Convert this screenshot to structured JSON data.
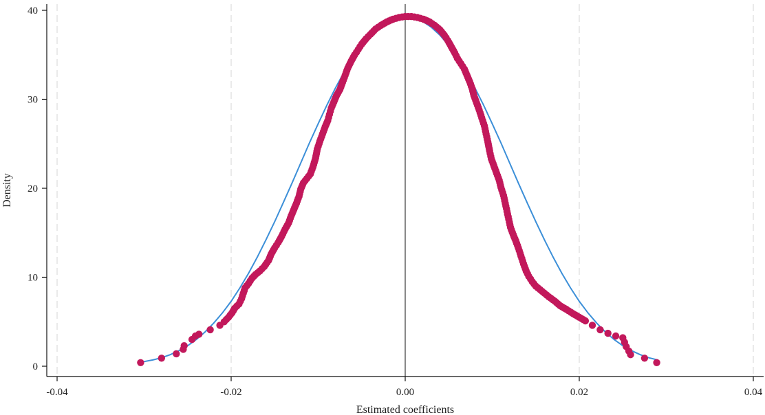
{
  "chart_data": {
    "type": "scatter",
    "title": "",
    "xlabel": "Estimated coefficients",
    "ylabel": "Density",
    "xlim": [
      -0.04,
      0.04
    ],
    "ylim": [
      0,
      40
    ],
    "x_ticks": [
      -0.04,
      -0.02,
      0.0,
      0.02,
      0.04
    ],
    "x_tick_labels": [
      "-0.04",
      "-0.02",
      "0.00",
      "0.02",
      "0.04"
    ],
    "y_ticks": [
      0,
      10,
      20,
      30,
      40
    ],
    "y_tick_labels": [
      "0",
      "10",
      "20",
      "30",
      "40"
    ],
    "vertical_gridlines": [
      -0.04,
      -0.02,
      0.02,
      0.04
    ],
    "reference_line_x": 0.0,
    "grid": true,
    "colors": {
      "points": "#c2185b",
      "normal_curve": "#3c8fd8",
      "reference_line": "#7a7a7a",
      "gridline": "#e3e3e3"
    },
    "series": [
      {
        "type": "scatter",
        "points": [
          [
            -0.0304,
            0.4
          ],
          [
            -0.028,
            0.9
          ],
          [
            -0.0263,
            1.4
          ],
          [
            -0.0255,
            1.9
          ],
          [
            -0.0254,
            2.3
          ],
          [
            -0.0245,
            3.0
          ],
          [
            -0.0241,
            3.4
          ],
          [
            -0.0237,
            3.6
          ],
          [
            -0.0224,
            4.1
          ],
          [
            -0.0213,
            4.6
          ],
          [
            -0.0208,
            5.0
          ],
          [
            -0.0203,
            5.5
          ],
          [
            -0.0199,
            6.0
          ],
          [
            -0.0196,
            6.5
          ],
          [
            -0.0191,
            7.0
          ],
          [
            -0.0188,
            7.6
          ],
          [
            -0.0186,
            8.2
          ],
          [
            -0.0184,
            8.8
          ],
          [
            -0.018,
            9.3
          ],
          [
            -0.0176,
            9.9
          ],
          [
            -0.0172,
            10.3
          ],
          [
            -0.0167,
            10.7
          ],
          [
            -0.0162,
            11.2
          ],
          [
            -0.0157,
            11.9
          ],
          [
            -0.0154,
            12.6
          ],
          [
            -0.015,
            13.3
          ],
          [
            -0.0146,
            13.9
          ],
          [
            -0.0142,
            14.6
          ],
          [
            -0.0138,
            15.4
          ],
          [
            -0.0134,
            16.1
          ],
          [
            -0.0131,
            16.9
          ],
          [
            -0.0128,
            17.6
          ],
          [
            -0.0125,
            18.3
          ],
          [
            -0.0122,
            19.1
          ],
          [
            -0.012,
            19.9
          ],
          [
            -0.0117,
            20.6
          ],
          [
            -0.0113,
            21.1
          ],
          [
            -0.0109,
            21.6
          ],
          [
            -0.0106,
            22.4
          ],
          [
            -0.0103,
            23.4
          ],
          [
            -0.0101,
            24.4
          ],
          [
            -0.0098,
            25.3
          ],
          [
            -0.0095,
            26.1
          ],
          [
            -0.0092,
            26.9
          ],
          [
            -0.0089,
            27.6
          ],
          [
            -0.0087,
            28.3
          ],
          [
            -0.0085,
            29.0
          ],
          [
            -0.0082,
            29.7
          ],
          [
            -0.0079,
            30.4
          ],
          [
            -0.0075,
            31.1
          ],
          [
            -0.0072,
            31.9
          ],
          [
            -0.0069,
            32.7
          ],
          [
            -0.0066,
            33.5
          ],
          [
            -0.0062,
            34.3
          ],
          [
            -0.0058,
            35.0
          ],
          [
            -0.0054,
            35.6
          ],
          [
            -0.005,
            36.2
          ],
          [
            -0.0045,
            36.8
          ],
          [
            -0.004,
            37.3
          ],
          [
            -0.0034,
            37.9
          ],
          [
            -0.0028,
            38.3
          ],
          [
            -0.0021,
            38.7
          ],
          [
            -0.0014,
            39.0
          ],
          [
            -0.0007,
            39.2
          ],
          [
            0.0,
            39.3
          ],
          [
            0.0007,
            39.3
          ],
          [
            0.0014,
            39.2
          ],
          [
            0.0021,
            39.0
          ],
          [
            0.0028,
            38.7
          ],
          [
            0.0034,
            38.3
          ],
          [
            0.004,
            37.8
          ],
          [
            0.0045,
            37.2
          ],
          [
            0.0049,
            36.6
          ],
          [
            0.0053,
            35.9
          ],
          [
            0.0057,
            35.2
          ],
          [
            0.006,
            34.6
          ],
          [
            0.0064,
            34.0
          ],
          [
            0.0068,
            33.4
          ],
          [
            0.0071,
            32.7
          ],
          [
            0.0074,
            32.0
          ],
          [
            0.0077,
            31.2
          ],
          [
            0.0079,
            30.4
          ],
          [
            0.0082,
            29.6
          ],
          [
            0.0085,
            28.8
          ],
          [
            0.0088,
            27.9
          ],
          [
            0.0091,
            27.0
          ],
          [
            0.0093,
            26.1
          ],
          [
            0.0095,
            25.2
          ],
          [
            0.0097,
            24.2
          ],
          [
            0.0099,
            23.3
          ],
          [
            0.0102,
            22.5
          ],
          [
            0.0105,
            21.7
          ],
          [
            0.0108,
            20.9
          ],
          [
            0.011,
            20.1
          ],
          [
            0.0113,
            19.2
          ],
          [
            0.0115,
            18.3
          ],
          [
            0.0117,
            17.4
          ],
          [
            0.0119,
            16.5
          ],
          [
            0.0121,
            15.6
          ],
          [
            0.0124,
            14.8
          ],
          [
            0.0127,
            14.1
          ],
          [
            0.013,
            13.3
          ],
          [
            0.0133,
            12.4
          ],
          [
            0.0136,
            11.5
          ],
          [
            0.0139,
            10.7
          ],
          [
            0.0142,
            10.1
          ],
          [
            0.0146,
            9.5
          ],
          [
            0.015,
            9.0
          ],
          [
            0.0155,
            8.6
          ],
          [
            0.016,
            8.2
          ],
          [
            0.0165,
            7.8
          ],
          [
            0.0172,
            7.3
          ],
          [
            0.0178,
            6.8
          ],
          [
            0.0185,
            6.4
          ],
          [
            0.0193,
            5.9
          ],
          [
            0.02,
            5.5
          ],
          [
            0.0207,
            5.1
          ],
          [
            0.0215,
            4.6
          ],
          [
            0.0224,
            4.1
          ],
          [
            0.0233,
            3.7
          ],
          [
            0.0242,
            3.4
          ],
          [
            0.025,
            3.2
          ],
          [
            0.0252,
            2.7
          ],
          [
            0.0254,
            2.2
          ],
          [
            0.0257,
            1.7
          ],
          [
            0.0259,
            1.3
          ],
          [
            0.0275,
            0.9
          ],
          [
            0.0289,
            0.4
          ]
        ]
      },
      {
        "type": "line",
        "points": [
          [
            -0.0304,
            0.45
          ],
          [
            -0.029,
            0.7
          ],
          [
            -0.028,
            0.95
          ],
          [
            -0.027,
            1.3
          ],
          [
            -0.026,
            1.75
          ],
          [
            -0.025,
            2.3
          ],
          [
            -0.024,
            3.0
          ],
          [
            -0.023,
            3.85
          ],
          [
            -0.022,
            4.85
          ],
          [
            -0.021,
            6.0
          ],
          [
            -0.02,
            7.3
          ],
          [
            -0.019,
            8.8
          ],
          [
            -0.018,
            10.45
          ],
          [
            -0.017,
            12.25
          ],
          [
            -0.016,
            14.2
          ],
          [
            -0.015,
            16.25
          ],
          [
            -0.014,
            18.4
          ],
          [
            -0.013,
            20.6
          ],
          [
            -0.012,
            22.85
          ],
          [
            -0.011,
            25.1
          ],
          [
            -0.01,
            27.25
          ],
          [
            -0.009,
            29.35
          ],
          [
            -0.008,
            31.3
          ],
          [
            -0.007,
            33.1
          ],
          [
            -0.006,
            34.7
          ],
          [
            -0.005,
            36.05
          ],
          [
            -0.004,
            37.2
          ],
          [
            -0.003,
            38.1
          ],
          [
            -0.002,
            38.75
          ],
          [
            -0.001,
            39.15
          ],
          [
            0.0,
            39.3
          ],
          [
            0.001,
            39.15
          ],
          [
            0.002,
            38.75
          ],
          [
            0.003,
            38.1
          ],
          [
            0.004,
            37.2
          ],
          [
            0.005,
            36.05
          ],
          [
            0.006,
            34.7
          ],
          [
            0.007,
            33.1
          ],
          [
            0.008,
            31.3
          ],
          [
            0.009,
            29.35
          ],
          [
            0.01,
            27.25
          ],
          [
            0.011,
            25.1
          ],
          [
            0.012,
            22.85
          ],
          [
            0.013,
            20.6
          ],
          [
            0.014,
            18.4
          ],
          [
            0.015,
            16.25
          ],
          [
            0.016,
            14.2
          ],
          [
            0.017,
            12.25
          ],
          [
            0.018,
            10.45
          ],
          [
            0.019,
            8.8
          ],
          [
            0.02,
            7.3
          ],
          [
            0.021,
            6.0
          ],
          [
            0.022,
            4.85
          ],
          [
            0.023,
            3.85
          ],
          [
            0.024,
            3.0
          ],
          [
            0.025,
            2.3
          ],
          [
            0.026,
            1.75
          ],
          [
            0.027,
            1.3
          ],
          [
            0.028,
            0.95
          ],
          [
            0.029,
            0.7
          ]
        ]
      }
    ]
  }
}
